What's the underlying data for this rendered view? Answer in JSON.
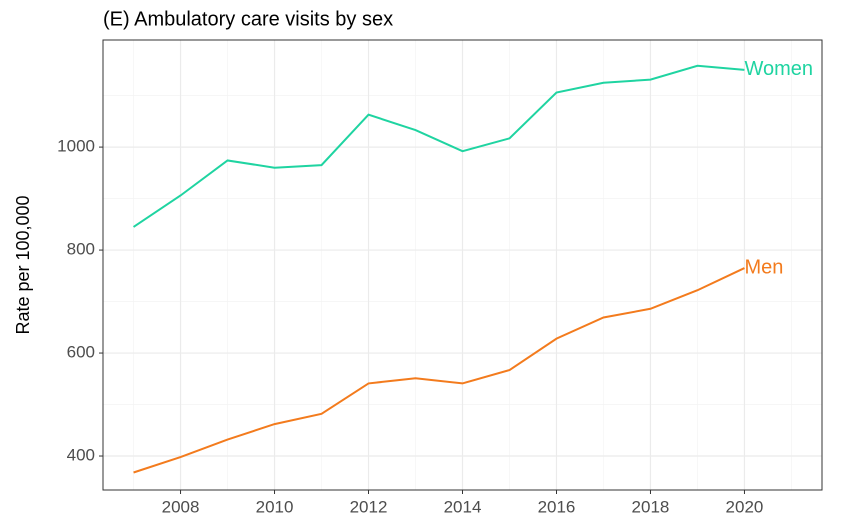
{
  "chart_data": {
    "type": "line",
    "title": "(E) Ambulatory care visits by sex",
    "y_label": "Rate per 100,000",
    "x": [
      2007,
      2008,
      2009,
      2010,
      2011,
      2012,
      2013,
      2014,
      2015,
      2016,
      2017,
      2018,
      2019,
      2020
    ],
    "series": [
      {
        "name": "Women",
        "color": "#1fd4a1",
        "values": [
          845,
          906,
          974,
          960,
          965,
          1063,
          1033,
          992,
          1017,
          1106,
          1125,
          1131,
          1158,
          1150
        ]
      },
      {
        "name": "Men",
        "color": "#f37b1d",
        "values": [
          368,
          398,
          432,
          462,
          482,
          541,
          551,
          541,
          567,
          628,
          669,
          686,
          722,
          765
        ]
      }
    ],
    "xlim": [
      2006.35,
      2021.65
    ],
    "xticks": [
      2008,
      2010,
      2012,
      2014,
      2016,
      2018,
      2020
    ],
    "ylim": [
      334,
      1208
    ],
    "yticks": [
      400,
      600,
      800,
      1000
    ],
    "grid": true,
    "minor_grid": true
  }
}
